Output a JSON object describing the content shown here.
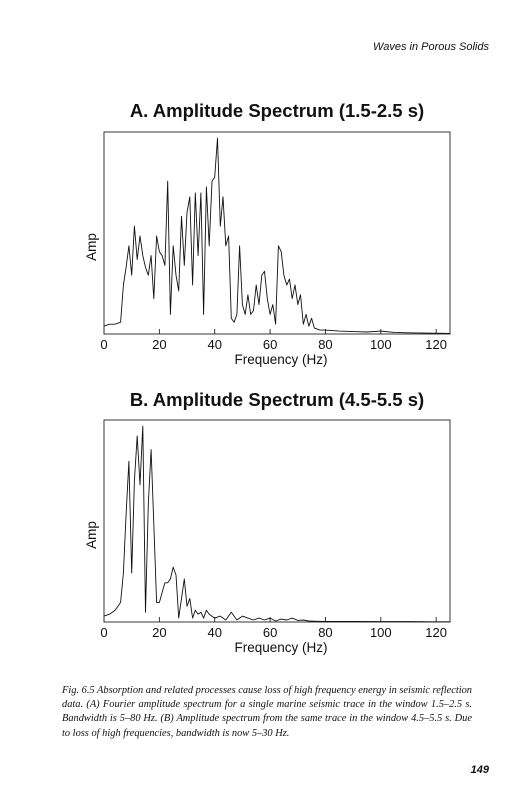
{
  "page": {
    "running_head": "Waves in Porous Solids",
    "page_number": "149",
    "caption": "Fig. 6.5 Absorption and related processes cause loss of high frequency energy in seismic reflection data. (A) Fourier amplitude spectrum for a single marine seismic trace in the window 1.5–2.5 s. Bandwidth is 5–80 Hz. (B) Amplitude spectrum from the same trace in the window 4.5–5.5 s. Due to loss of high frequencies, bandwidth is now 5–30 Hz."
  },
  "chart_data": [
    {
      "type": "line",
      "title": "A. Amplitude Spectrum (1.5-2.5 s)",
      "xlabel": "Frequency (Hz)",
      "ylabel": "Amp",
      "xlim": [
        0,
        125
      ],
      "ylim": [
        0,
        1
      ],
      "xticks": [
        0,
        20,
        40,
        60,
        80,
        100,
        120
      ],
      "grid": false,
      "series": [
        {
          "x": [
            0,
            2,
            4,
            6,
            7,
            8,
            9,
            10,
            11,
            12,
            13,
            14,
            15,
            16,
            17,
            18,
            19,
            20,
            21,
            22,
            23,
            24,
            25,
            26,
            27,
            28,
            29,
            30,
            31,
            32,
            33,
            34,
            35,
            36,
            37,
            38,
            39,
            40,
            41,
            42,
            43,
            44,
            45,
            46,
            47,
            48,
            49,
            50,
            51,
            52,
            53,
            54,
            55,
            56,
            57,
            58,
            59,
            60,
            61,
            62,
            63,
            64,
            65,
            66,
            67,
            68,
            69,
            70,
            71,
            72,
            73,
            74,
            75,
            76,
            78,
            80,
            85,
            90,
            95,
            100,
            105,
            110,
            120,
            125
          ],
          "y": [
            0.04,
            0.05,
            0.05,
            0.06,
            0.25,
            0.34,
            0.45,
            0.3,
            0.55,
            0.38,
            0.5,
            0.4,
            0.34,
            0.3,
            0.4,
            0.18,
            0.5,
            0.42,
            0.4,
            0.35,
            0.78,
            0.1,
            0.45,
            0.3,
            0.22,
            0.6,
            0.35,
            0.62,
            0.7,
            0.25,
            0.72,
            0.4,
            0.72,
            0.1,
            0.75,
            0.45,
            0.78,
            0.8,
            1.0,
            0.55,
            0.7,
            0.45,
            0.5,
            0.08,
            0.06,
            0.1,
            0.45,
            0.15,
            0.1,
            0.2,
            0.1,
            0.12,
            0.25,
            0.15,
            0.3,
            0.32,
            0.18,
            0.1,
            0.15,
            0.05,
            0.45,
            0.42,
            0.3,
            0.25,
            0.28,
            0.18,
            0.25,
            0.15,
            0.2,
            0.05,
            0.1,
            0.04,
            0.08,
            0.03,
            0.02,
            0.02,
            0.015,
            0.012,
            0.01,
            0.015,
            0.008,
            0.006,
            0.004,
            0.003
          ]
        }
      ]
    },
    {
      "type": "line",
      "title": "B. Amplitude Spectrum (4.5-5.5 s)",
      "xlabel": "Frequency (Hz)",
      "ylabel": "Amp",
      "xlim": [
        0,
        125
      ],
      "ylim": [
        0,
        1
      ],
      "xticks": [
        0,
        20,
        40,
        60,
        80,
        100,
        120
      ],
      "grid": false,
      "series": [
        {
          "x": [
            0,
            2,
            4,
            6,
            7,
            8,
            9,
            10,
            11,
            12,
            13,
            14,
            15,
            16,
            17,
            18,
            19,
            20,
            21,
            22,
            23,
            24,
            25,
            26,
            27,
            28,
            29,
            30,
            31,
            32,
            33,
            34,
            35,
            36,
            37,
            38,
            40,
            42,
            44,
            46,
            48,
            50,
            52,
            54,
            56,
            58,
            60,
            62,
            64,
            66,
            68,
            70,
            72,
            74,
            76,
            80,
            90,
            100,
            110,
            120,
            125
          ],
          "y": [
            0.03,
            0.04,
            0.06,
            0.1,
            0.25,
            0.55,
            0.82,
            0.25,
            0.72,
            0.95,
            0.7,
            1.0,
            0.05,
            0.6,
            0.88,
            0.5,
            0.1,
            0.1,
            0.15,
            0.2,
            0.2,
            0.22,
            0.28,
            0.24,
            0.02,
            0.12,
            0.22,
            0.08,
            0.12,
            0.02,
            0.06,
            0.04,
            0.05,
            0.02,
            0.06,
            0.04,
            0.02,
            0.03,
            0.01,
            0.05,
            0.01,
            0.03,
            0.02,
            0.01,
            0.02,
            0.01,
            0.02,
            0.005,
            0.015,
            0.01,
            0.02,
            0.008,
            0.01,
            0.005,
            0.004,
            0.003,
            0.003,
            0.002,
            0.002,
            0.001,
            0.001
          ]
        }
      ]
    }
  ]
}
